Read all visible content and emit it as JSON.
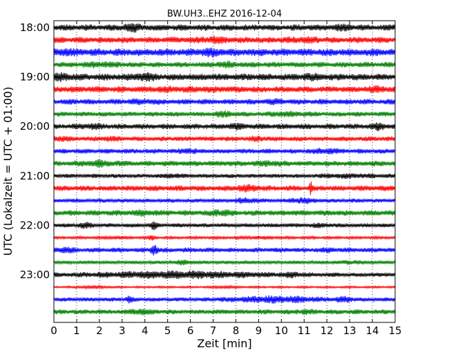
{
  "chart_data": {
    "type": "line",
    "title": "BW.UH3..EHZ 2016-12-04",
    "xlabel": "Zeit  [min]",
    "ylabel": "UTC (Lokalzeit = UTC + 01:00)",
    "xlim": [
      0,
      15
    ],
    "x_ticks": [
      0,
      1,
      2,
      3,
      4,
      5,
      6,
      7,
      8,
      9,
      10,
      11,
      12,
      13,
      14,
      15
    ],
    "y_tick_labels": [
      "18:00",
      "19:00",
      "20:00",
      "21:00",
      "22:00",
      "23:00"
    ],
    "grid": "vertical-dotted",
    "trace_colors": [
      "#000000",
      "#ff0000",
      "#0000ff",
      "#008000"
    ],
    "series": [
      {
        "start": "18:00",
        "amp": 0.45,
        "bursts": [
          [
            3.4,
            0.3,
            1.7
          ],
          [
            12.8,
            0.3,
            1.4
          ]
        ]
      },
      {
        "start": "18:15",
        "amp": 0.45,
        "bursts": [
          [
            7.1,
            0.4,
            1.5
          ],
          [
            10.9,
            0.5,
            1.3
          ]
        ]
      },
      {
        "start": "18:30",
        "amp": 0.55,
        "bursts": [
          [
            0.4,
            0.3,
            1.3
          ],
          [
            6.8,
            0.3,
            1.4
          ]
        ]
      },
      {
        "start": "18:45",
        "amp": 0.4,
        "bursts": [
          [
            2.0,
            0.5,
            1.4
          ],
          [
            7.5,
            0.4,
            1.4
          ]
        ]
      },
      {
        "start": "19:00",
        "amp": 0.5,
        "bursts": [
          [
            0.4,
            0.3,
            1.5
          ],
          [
            4.0,
            0.3,
            1.6
          ],
          [
            11.2,
            0.3,
            1.3
          ]
        ]
      },
      {
        "start": "19:15",
        "amp": 0.45,
        "bursts": [
          [
            5.5,
            1.5,
            1.2
          ],
          [
            14.2,
            0.3,
            1.4
          ]
        ]
      },
      {
        "start": "19:30",
        "amp": 0.4,
        "bursts": [
          [
            4.0,
            0.4,
            1.4
          ],
          [
            9.8,
            0.4,
            1.3
          ]
        ]
      },
      {
        "start": "19:45",
        "amp": 0.35,
        "bursts": [
          [
            7.5,
            0.3,
            1.6
          ],
          [
            10.0,
            0.3,
            1.5
          ],
          [
            10.8,
            0.3,
            1.4
          ]
        ]
      },
      {
        "start": "20:00",
        "amp": 0.4,
        "bursts": [
          [
            1.7,
            0.3,
            1.4
          ],
          [
            8.0,
            0.3,
            1.5
          ],
          [
            14.3,
            0.2,
            1.7
          ]
        ]
      },
      {
        "start": "20:15",
        "amp": 0.35,
        "bursts": [
          [
            0.2,
            0.3,
            1.5
          ],
          [
            2.5,
            0.3,
            1.3
          ],
          [
            9.0,
            0.3,
            1.4
          ]
        ]
      },
      {
        "start": "20:30",
        "amp": 0.35,
        "bursts": [
          [
            5.9,
            0.2,
            1.7
          ],
          [
            12.0,
            0.4,
            1.6
          ]
        ]
      },
      {
        "start": "20:45",
        "amp": 0.4,
        "bursts": [
          [
            2.0,
            0.5,
            1.5
          ],
          [
            9.5,
            0.4,
            1.4
          ]
        ]
      },
      {
        "start": "21:00",
        "amp": 0.3,
        "bursts": [
          [
            5.2,
            0.2,
            1.8
          ],
          [
            13.0,
            0.8,
            1.5
          ]
        ]
      },
      {
        "start": "21:15",
        "amp": 0.4,
        "bursts": [
          [
            8.5,
            0.4,
            1.6
          ],
          [
            11.3,
            0.05,
            3.0
          ]
        ]
      },
      {
        "start": "21:30",
        "amp": 0.3,
        "bursts": [
          [
            8.5,
            0.3,
            1.8
          ],
          [
            10.9,
            0.4,
            1.8
          ]
        ]
      },
      {
        "start": "21:45",
        "amp": 0.4,
        "bursts": [
          [
            4.0,
            0.5,
            1.4
          ],
          [
            7.3,
            0.3,
            1.6
          ]
        ]
      },
      {
        "start": "22:00",
        "amp": 0.3,
        "bursts": [
          [
            1.4,
            0.2,
            1.8
          ],
          [
            4.4,
            0.1,
            2.4
          ],
          [
            11.7,
            0.3,
            1.4
          ]
        ]
      },
      {
        "start": "22:15",
        "amp": 0.2,
        "bursts": [
          [
            2.8,
            0.3,
            1.5
          ],
          [
            4.3,
            0.1,
            2.4
          ],
          [
            9.0,
            0.5,
            1.5
          ]
        ]
      },
      {
        "start": "22:30",
        "amp": 0.35,
        "bursts": [
          [
            0.4,
            0.3,
            1.6
          ],
          [
            4.4,
            0.1,
            3.2
          ],
          [
            12.0,
            0.3,
            1.3
          ]
        ]
      },
      {
        "start": "22:45",
        "amp": 0.25,
        "bursts": [
          [
            5.7,
            0.3,
            1.8
          ],
          [
            13.1,
            0.3,
            1.6
          ]
        ]
      },
      {
        "start": "23:00",
        "amp": 0.3,
        "bursts": [
          [
            5.6,
            2.6,
            2.2
          ],
          [
            10.5,
            0.3,
            1.6
          ]
        ]
      },
      {
        "start": "23:15",
        "amp": 0.15,
        "bursts": [
          [
            1.7,
            0.4,
            2.0
          ],
          [
            7.5,
            0.3,
            1.8
          ]
        ]
      },
      {
        "start": "23:30",
        "amp": 0.3,
        "bursts": [
          [
            3.3,
            0.1,
            2.2
          ],
          [
            9.7,
            1.3,
            2.1
          ],
          [
            12.8,
            0.3,
            1.8
          ]
        ]
      },
      {
        "start": "23:45",
        "amp": 0.35,
        "bursts": [
          [
            3.8,
            0.3,
            1.7
          ],
          [
            11.0,
            0.3,
            1.4
          ]
        ]
      }
    ]
  }
}
